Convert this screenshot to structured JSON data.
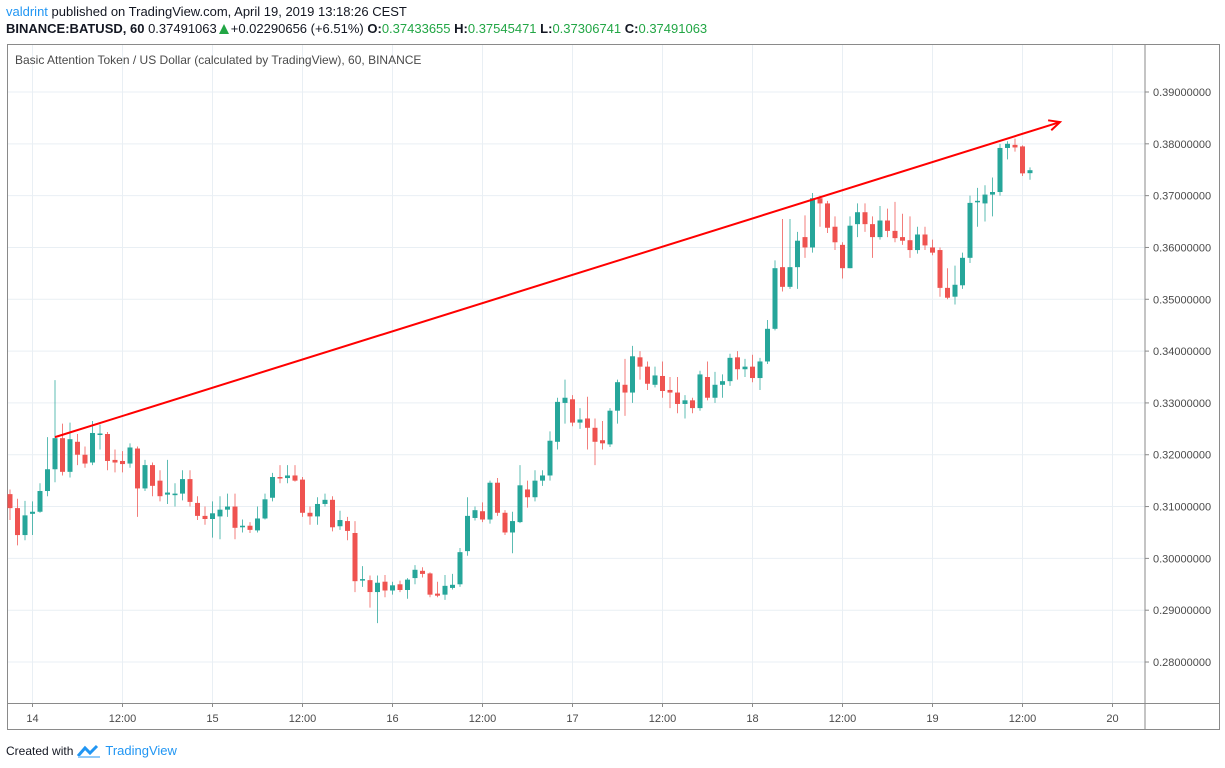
{
  "header": {
    "user": "valdrint",
    "published": "published on TradingView.com, April 19, 2019 13:18:26 CEST",
    "symbol": "BINANCE:BATUSD, 60",
    "last": "0.37491063",
    "change": "+0.02290656 (+6.51%)",
    "o_label": "O:",
    "o": "0.37433655",
    "h_label": "H:",
    "h": "0.37545471",
    "l_label": "L:",
    "l": "0.37306741",
    "c_label": "C:",
    "c": "0.37491063"
  },
  "pane_title": "Basic Attention Token / US Dollar (calculated by TradingView), 60, BINANCE",
  "footer": {
    "created_with": "Created with",
    "brand": "TradingView"
  },
  "colors": {
    "up": "#26a69a",
    "down": "#ef5350",
    "trendline": "#ff0000",
    "grid": "#e9eff4",
    "brand": "#2196f3"
  },
  "chart_data": {
    "type": "candlestick",
    "interval": "60",
    "ylim": [
      0.272,
      0.3995
    ],
    "grid": true,
    "y_ticks": [
      "0.28000000",
      "0.29000000",
      "0.30000000",
      "0.31000000",
      "0.32000000",
      "0.33000000",
      "0.34000000",
      "0.35000000",
      "0.36000000",
      "0.37000000",
      "0.38000000",
      "0.39000000"
    ],
    "x_ticks": [
      {
        "label": "14",
        "t": "2019-04-14 00:00"
      },
      {
        "label": "12:00",
        "t": "2019-04-14 12:00"
      },
      {
        "label": "15",
        "t": "2019-04-15 00:00"
      },
      {
        "label": "12:00",
        "t": "2019-04-15 12:00"
      },
      {
        "label": "16",
        "t": "2019-04-16 00:00"
      },
      {
        "label": "12:00",
        "t": "2019-04-16 12:00"
      },
      {
        "label": "17",
        "t": "2019-04-17 00:00"
      },
      {
        "label": "12:00",
        "t": "2019-04-17 12:00"
      },
      {
        "label": "18",
        "t": "2019-04-18 00:00"
      },
      {
        "label": "12:00",
        "t": "2019-04-18 12:00"
      },
      {
        "label": "19",
        "t": "2019-04-19 00:00"
      },
      {
        "label": "12:00",
        "t": "2019-04-19 12:00"
      },
      {
        "label": "20",
        "t": "2019-04-20 00:00"
      }
    ],
    "trendline": [
      {
        "t": "2019-04-14 03:00",
        "price": 0.3234
      },
      {
        "t": "2019-04-19 17:00",
        "price": 0.3842
      }
    ],
    "candle_fields": [
      "time",
      "open",
      "high",
      "low",
      "close"
    ],
    "candles": [
      [
        "2019-04-13 21:00",
        0.3124,
        0.3133,
        0.3074,
        0.3097
      ],
      [
        "2019-04-13 22:00",
        0.3097,
        0.3115,
        0.3025,
        0.3045
      ],
      [
        "2019-04-13 23:00",
        0.3045,
        0.3111,
        0.3035,
        0.3083
      ],
      [
        "2019-04-14 00:00",
        0.3086,
        0.311,
        0.3045,
        0.309
      ],
      [
        "2019-04-14 01:00",
        0.309,
        0.3145,
        0.3088,
        0.313
      ],
      [
        "2019-04-14 02:00",
        0.313,
        0.3234,
        0.312,
        0.3172
      ],
      [
        "2019-04-14 03:00",
        0.3172,
        0.3344,
        0.3147,
        0.3232
      ],
      [
        "2019-04-14 04:00",
        0.3232,
        0.326,
        0.316,
        0.3167
      ],
      [
        "2019-04-14 05:00",
        0.3167,
        0.3262,
        0.3156,
        0.323
      ],
      [
        "2019-04-14 06:00",
        0.3225,
        0.324,
        0.318,
        0.32
      ],
      [
        "2019-04-14 07:00",
        0.32,
        0.3216,
        0.3175,
        0.3183
      ],
      [
        "2019-04-14 08:00",
        0.3185,
        0.3265,
        0.318,
        0.3242
      ],
      [
        "2019-04-14 09:00",
        0.324,
        0.3258,
        0.321,
        0.3241
      ],
      [
        "2019-04-14 10:00",
        0.324,
        0.3244,
        0.317,
        0.3188
      ],
      [
        "2019-04-14 11:00",
        0.319,
        0.321,
        0.3166,
        0.3185
      ],
      [
        "2019-04-14 12:00",
        0.3188,
        0.3207,
        0.3166,
        0.3182
      ],
      [
        "2019-04-14 13:00",
        0.3183,
        0.3222,
        0.3175,
        0.3214
      ],
      [
        "2019-04-14 14:00",
        0.3212,
        0.3216,
        0.308,
        0.3135
      ],
      [
        "2019-04-14 15:00",
        0.3135,
        0.319,
        0.313,
        0.318
      ],
      [
        "2019-04-14 16:00",
        0.318,
        0.3185,
        0.312,
        0.314
      ],
      [
        "2019-04-14 17:00",
        0.315,
        0.317,
        0.311,
        0.312
      ],
      [
        "2019-04-14 18:00",
        0.3123,
        0.319,
        0.3105,
        0.3127
      ],
      [
        "2019-04-14 19:00",
        0.3122,
        0.3145,
        0.31,
        0.3125
      ],
      [
        "2019-04-14 20:00",
        0.3125,
        0.317,
        0.3112,
        0.3153
      ],
      [
        "2019-04-14 21:00",
        0.3153,
        0.317,
        0.31,
        0.3109
      ],
      [
        "2019-04-14 22:00",
        0.3107,
        0.312,
        0.3074,
        0.3082
      ],
      [
        "2019-04-14 23:00",
        0.3082,
        0.31,
        0.3065,
        0.3076
      ],
      [
        "2019-04-15 00:00",
        0.3076,
        0.311,
        0.304,
        0.3087
      ],
      [
        "2019-04-15 01:00",
        0.3081,
        0.312,
        0.3037,
        0.3094
      ],
      [
        "2019-04-15 02:00",
        0.3094,
        0.3125,
        0.308,
        0.31
      ],
      [
        "2019-04-15 03:00",
        0.31,
        0.3125,
        0.3037,
        0.3059
      ],
      [
        "2019-04-15 04:00",
        0.306,
        0.3075,
        0.305,
        0.3063
      ],
      [
        "2019-04-15 05:00",
        0.3063,
        0.307,
        0.3049,
        0.3055
      ],
      [
        "2019-04-15 06:00",
        0.3054,
        0.31,
        0.305,
        0.3077
      ],
      [
        "2019-04-15 07:00",
        0.3077,
        0.3125,
        0.3075,
        0.3114
      ],
      [
        "2019-04-15 08:00",
        0.3117,
        0.3165,
        0.311,
        0.3157
      ],
      [
        "2019-04-15 09:00",
        0.3157,
        0.318,
        0.3145,
        0.3155
      ],
      [
        "2019-04-15 10:00",
        0.3155,
        0.318,
        0.3145,
        0.316
      ],
      [
        "2019-04-15 11:00",
        0.316,
        0.318,
        0.3148,
        0.315
      ],
      [
        "2019-04-15 12:00",
        0.3152,
        0.3157,
        0.308,
        0.3088
      ],
      [
        "2019-04-15 13:00",
        0.3088,
        0.31,
        0.3065,
        0.3081
      ],
      [
        "2019-04-15 14:00",
        0.3081,
        0.3118,
        0.3065,
        0.3105
      ],
      [
        "2019-04-15 15:00",
        0.3105,
        0.3125,
        0.31,
        0.3113
      ],
      [
        "2019-04-15 16:00",
        0.3113,
        0.312,
        0.3052,
        0.306
      ],
      [
        "2019-04-15 17:00",
        0.3062,
        0.3092,
        0.3055,
        0.3074
      ],
      [
        "2019-04-15 18:00",
        0.3072,
        0.308,
        0.3035,
        0.3053
      ],
      [
        "2019-04-15 19:00",
        0.3049,
        0.3072,
        0.2935,
        0.2956
      ],
      [
        "2019-04-15 20:00",
        0.2958,
        0.2985,
        0.2945,
        0.296
      ],
      [
        "2019-04-15 21:00",
        0.2958,
        0.2967,
        0.2905,
        0.2935
      ],
      [
        "2019-04-15 22:00",
        0.2935,
        0.2967,
        0.2875,
        0.2953
      ],
      [
        "2019-04-15 23:00",
        0.2955,
        0.2968,
        0.2925,
        0.2938
      ],
      [
        "2019-04-16 00:00",
        0.2938,
        0.2955,
        0.293,
        0.2948
      ],
      [
        "2019-04-16 01:00",
        0.295,
        0.2957,
        0.2935,
        0.2939
      ],
      [
        "2019-04-16 02:00",
        0.2939,
        0.2962,
        0.2922,
        0.2959
      ],
      [
        "2019-04-16 03:00",
        0.2962,
        0.2987,
        0.295,
        0.2978
      ],
      [
        "2019-04-16 04:00",
        0.2976,
        0.2983,
        0.2963,
        0.297
      ],
      [
        "2019-04-16 05:00",
        0.2971,
        0.2973,
        0.2925,
        0.293
      ],
      [
        "2019-04-16 06:00",
        0.2932,
        0.2955,
        0.2925,
        0.2928
      ],
      [
        "2019-04-16 07:00",
        0.293,
        0.2968,
        0.292,
        0.2947
      ],
      [
        "2019-04-16 08:00",
        0.2943,
        0.297,
        0.294,
        0.2949
      ],
      [
        "2019-04-16 09:00",
        0.295,
        0.302,
        0.2945,
        0.3012
      ],
      [
        "2019-04-16 10:00",
        0.3014,
        0.3118,
        0.3005,
        0.3082
      ],
      [
        "2019-04-16 11:00",
        0.3078,
        0.31,
        0.3073,
        0.3093
      ],
      [
        "2019-04-16 12:00",
        0.3091,
        0.3108,
        0.307,
        0.3075
      ],
      [
        "2019-04-16 13:00",
        0.3075,
        0.315,
        0.3067,
        0.3146
      ],
      [
        "2019-04-16 14:00",
        0.3146,
        0.3155,
        0.3082,
        0.3088
      ],
      [
        "2019-04-16 15:00",
        0.3088,
        0.3093,
        0.3045,
        0.305
      ],
      [
        "2019-04-16 16:00",
        0.305,
        0.309,
        0.301,
        0.3072
      ],
      [
        "2019-04-16 17:00",
        0.307,
        0.318,
        0.3068,
        0.3141
      ],
      [
        "2019-04-16 18:00",
        0.3133,
        0.315,
        0.3098,
        0.3118
      ],
      [
        "2019-04-16 19:00",
        0.3118,
        0.317,
        0.311,
        0.315
      ],
      [
        "2019-04-16 20:00",
        0.315,
        0.317,
        0.314,
        0.316
      ],
      [
        "2019-04-16 21:00",
        0.316,
        0.3245,
        0.315,
        0.3227
      ],
      [
        "2019-04-16 22:00",
        0.3225,
        0.331,
        0.321,
        0.3302
      ],
      [
        "2019-04-16 23:00",
        0.33,
        0.3345,
        0.326,
        0.331
      ],
      [
        "2019-04-17 00:00",
        0.3307,
        0.3315,
        0.3255,
        0.3262
      ],
      [
        "2019-04-17 01:00",
        0.3262,
        0.329,
        0.325,
        0.3268
      ],
      [
        "2019-04-17 02:00",
        0.327,
        0.3312,
        0.321,
        0.3252
      ],
      [
        "2019-04-17 03:00",
        0.3252,
        0.327,
        0.318,
        0.3225
      ],
      [
        "2019-04-17 04:00",
        0.3228,
        0.3265,
        0.321,
        0.3222
      ],
      [
        "2019-04-17 05:00",
        0.322,
        0.329,
        0.3215,
        0.3285
      ],
      [
        "2019-04-17 06:00",
        0.3285,
        0.3345,
        0.326,
        0.334
      ],
      [
        "2019-04-17 07:00",
        0.3335,
        0.3385,
        0.3275,
        0.332
      ],
      [
        "2019-04-17 08:00",
        0.332,
        0.341,
        0.33,
        0.339
      ],
      [
        "2019-04-17 09:00",
        0.3388,
        0.34,
        0.3345,
        0.337
      ],
      [
        "2019-04-17 10:00",
        0.337,
        0.338,
        0.3325,
        0.3337
      ],
      [
        "2019-04-17 11:00",
        0.3335,
        0.337,
        0.333,
        0.3353
      ],
      [
        "2019-04-17 12:00",
        0.3352,
        0.338,
        0.331,
        0.3323
      ],
      [
        "2019-04-17 13:00",
        0.3325,
        0.335,
        0.329,
        0.332
      ],
      [
        "2019-04-17 14:00",
        0.332,
        0.335,
        0.328,
        0.3298
      ],
      [
        "2019-04-17 15:00",
        0.3298,
        0.3315,
        0.327,
        0.3305
      ],
      [
        "2019-04-17 16:00",
        0.3305,
        0.331,
        0.328,
        0.329
      ],
      [
        "2019-04-17 17:00",
        0.329,
        0.3362,
        0.3285,
        0.3355
      ],
      [
        "2019-04-17 18:00",
        0.335,
        0.338,
        0.3305,
        0.331
      ],
      [
        "2019-04-17 19:00",
        0.331,
        0.336,
        0.33,
        0.3335
      ],
      [
        "2019-04-17 20:00",
        0.3335,
        0.3355,
        0.331,
        0.3342
      ],
      [
        "2019-04-17 21:00",
        0.3342,
        0.3395,
        0.3333,
        0.3387
      ],
      [
        "2019-04-17 22:00",
        0.3388,
        0.34,
        0.3345,
        0.3365
      ],
      [
        "2019-04-17 23:00",
        0.3365,
        0.3385,
        0.335,
        0.337
      ],
      [
        "2019-04-18 00:00",
        0.337,
        0.3393,
        0.334,
        0.3348
      ],
      [
        "2019-04-18 01:00",
        0.3348,
        0.3387,
        0.3325,
        0.338
      ],
      [
        "2019-04-18 02:00",
        0.338,
        0.346,
        0.3375,
        0.3443
      ],
      [
        "2019-04-18 03:00",
        0.3443,
        0.3575,
        0.344,
        0.356
      ],
      [
        "2019-04-18 04:00",
        0.3562,
        0.3655,
        0.3515,
        0.3524
      ],
      [
        "2019-04-18 05:00",
        0.3524,
        0.3655,
        0.352,
        0.3562
      ],
      [
        "2019-04-18 06:00",
        0.3562,
        0.363,
        0.352,
        0.3613
      ],
      [
        "2019-04-18 07:00",
        0.362,
        0.3662,
        0.358,
        0.36
      ],
      [
        "2019-04-18 08:00",
        0.36,
        0.3705,
        0.359,
        0.3695
      ],
      [
        "2019-04-18 09:00",
        0.3695,
        0.37,
        0.364,
        0.3685
      ],
      [
        "2019-04-18 10:00",
        0.3685,
        0.369,
        0.3628,
        0.3638
      ],
      [
        "2019-04-18 11:00",
        0.364,
        0.366,
        0.3595,
        0.361
      ],
      [
        "2019-04-18 12:00",
        0.3605,
        0.361,
        0.354,
        0.356
      ],
      [
        "2019-04-18 13:00",
        0.356,
        0.366,
        0.356,
        0.3642
      ],
      [
        "2019-04-18 14:00",
        0.3645,
        0.3685,
        0.362,
        0.3668
      ],
      [
        "2019-04-18 15:00",
        0.3668,
        0.3685,
        0.363,
        0.3645
      ],
      [
        "2019-04-18 16:00",
        0.3645,
        0.366,
        0.358,
        0.362
      ],
      [
        "2019-04-18 17:00",
        0.362,
        0.368,
        0.3615,
        0.3652
      ],
      [
        "2019-04-18 18:00",
        0.3652,
        0.3675,
        0.362,
        0.3632
      ],
      [
        "2019-04-18 19:00",
        0.3632,
        0.3688,
        0.361,
        0.3618
      ],
      [
        "2019-04-18 20:00",
        0.362,
        0.3665,
        0.3605,
        0.3613
      ],
      [
        "2019-04-18 21:00",
        0.3614,
        0.366,
        0.358,
        0.3595
      ],
      [
        "2019-04-18 22:00",
        0.3595,
        0.364,
        0.3588,
        0.3625
      ],
      [
        "2019-04-18 23:00",
        0.3625,
        0.364,
        0.3595,
        0.3604
      ],
      [
        "2019-04-19 00:00",
        0.36,
        0.3615,
        0.3585,
        0.359
      ],
      [
        "2019-04-19 01:00",
        0.3595,
        0.36,
        0.3505,
        0.3522
      ],
      [
        "2019-04-19 02:00",
        0.3522,
        0.356,
        0.35,
        0.3503
      ],
      [
        "2019-04-19 03:00",
        0.3505,
        0.3565,
        0.349,
        0.3528
      ],
      [
        "2019-04-19 04:00",
        0.3527,
        0.359,
        0.352,
        0.358
      ],
      [
        "2019-04-19 05:00",
        0.358,
        0.37,
        0.357,
        0.3686
      ],
      [
        "2019-04-19 06:00",
        0.369,
        0.3715,
        0.364,
        0.369
      ],
      [
        "2019-04-19 07:00",
        0.3685,
        0.372,
        0.365,
        0.3702
      ],
      [
        "2019-04-19 08:00",
        0.3702,
        0.3735,
        0.366,
        0.3707
      ],
      [
        "2019-04-19 09:00",
        0.3707,
        0.38,
        0.37,
        0.3792
      ],
      [
        "2019-04-19 10:00",
        0.3792,
        0.3805,
        0.377,
        0.38
      ],
      [
        "2019-04-19 11:00",
        0.3798,
        0.381,
        0.3785,
        0.3793
      ],
      [
        "2019-04-19 12:00",
        0.3795,
        0.3797,
        0.3738,
        0.3743
      ],
      [
        "2019-04-19 13:00",
        0.37433655,
        0.37545471,
        0.37306741,
        0.37491063
      ]
    ]
  }
}
